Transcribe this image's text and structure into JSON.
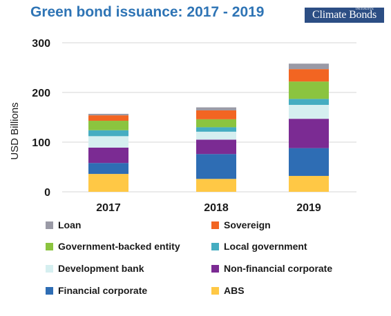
{
  "logo": "Climate Bonds",
  "logo_small": "INITIATIVE",
  "chart_data": {
    "type": "bar",
    "stacked": true,
    "title": "Green bond issuance: 2017 - 2019",
    "xlabel": "",
    "ylabel": "USD Billions",
    "ylim": [
      0,
      300
    ],
    "yticks": [
      "0",
      "100",
      "200",
      "300"
    ],
    "grid": true,
    "legend_position": "bottom",
    "categories": [
      "2017",
      "2018",
      "2019"
    ],
    "series": [
      {
        "name": "ABS",
        "color": "#ffc845",
        "values": [
          36,
          26,
          32
        ]
      },
      {
        "name": "Financial corporate",
        "color": "#2e6db4",
        "values": [
          22,
          50,
          56
        ]
      },
      {
        "name": "Non-financial corporate",
        "color": "#7b2b93",
        "values": [
          31,
          29,
          59
        ]
      },
      {
        "name": "Development bank",
        "color": "#d5eff0",
        "values": [
          23,
          16,
          28
        ]
      },
      {
        "name": "Local government",
        "color": "#45adc1",
        "values": [
          12,
          9,
          12
        ]
      },
      {
        "name": "Government-backed entity",
        "color": "#8bc43f",
        "values": [
          19,
          16,
          35
        ]
      },
      {
        "name": "Sovereign",
        "color": "#f26522",
        "values": [
          11,
          18,
          25
        ]
      },
      {
        "name": "Loan",
        "color": "#9a9aa6",
        "values": [
          3,
          6,
          11
        ]
      }
    ],
    "legend_order": [
      "Loan",
      "Sovereign",
      "Government-backed entity",
      "Local government",
      "Development bank",
      "Non-financial corporate",
      "Financial corporate",
      "ABS"
    ]
  }
}
